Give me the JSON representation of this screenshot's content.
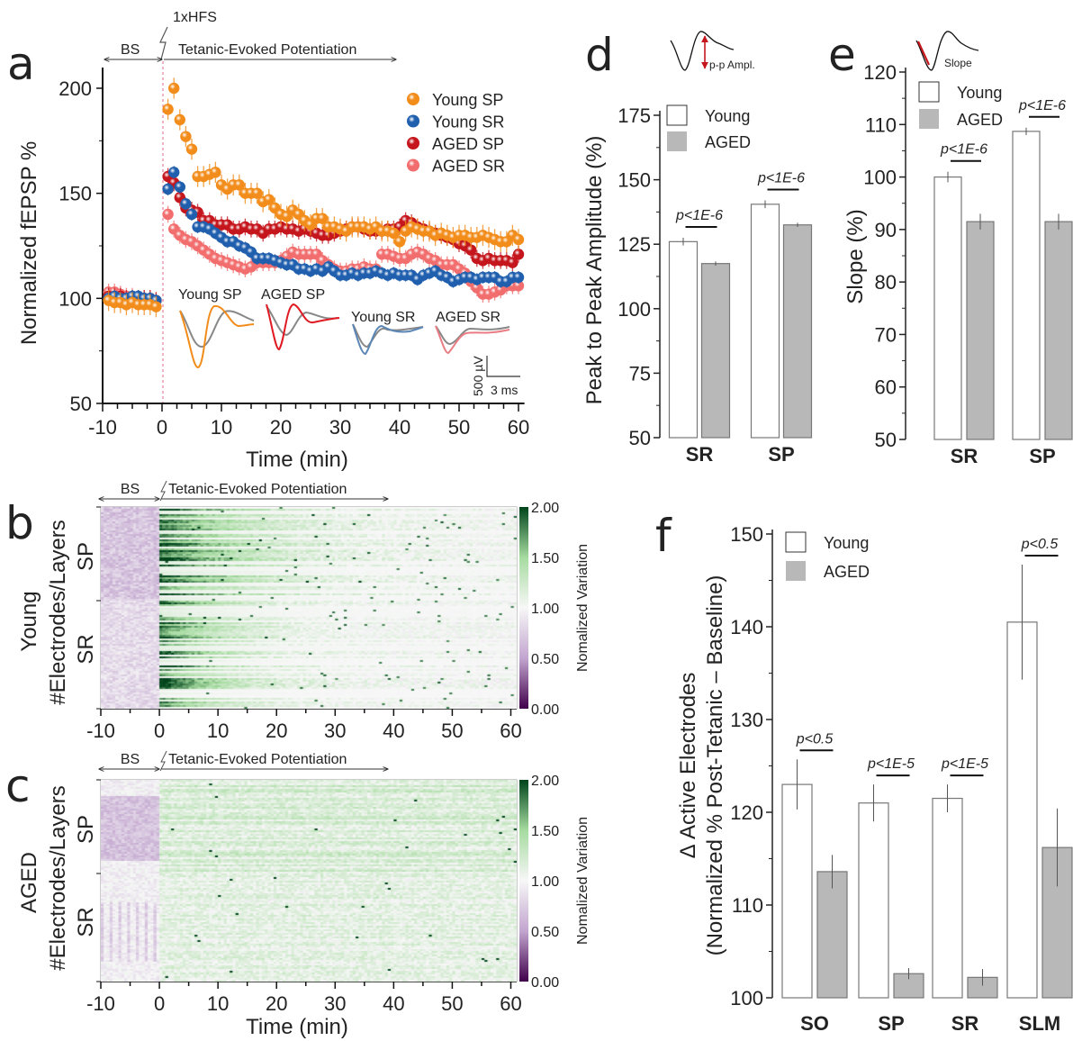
{
  "panel_labels": {
    "a": "a",
    "b": "b",
    "c": "c",
    "d": "d",
    "e": "e",
    "f": "f"
  },
  "chart_data": [
    {
      "id": "a",
      "type": "scatter",
      "title": "",
      "xlabel": "Time (min)",
      "ylabel": "Normalized fEPSP %",
      "xlim": [
        -10,
        61
      ],
      "ylim": [
        50,
        210
      ],
      "xticks": [
        -10,
        0,
        10,
        20,
        30,
        40,
        50,
        60
      ],
      "yticks": [
        50,
        100,
        150,
        200
      ],
      "grid": false,
      "legend_position": "top-right",
      "annotations": {
        "stimulus": "1xHFS",
        "baseline": "BS",
        "post": "Tetanic-Evoked Potentiation"
      },
      "insets": {
        "labels": [
          "Young SP",
          "AGED SP",
          "Young SR",
          "AGED SR"
        ],
        "scalebar_y": "500 µV",
        "scalebar_x": "3 ms"
      },
      "x": [
        -9,
        -8,
        -7,
        -6,
        -5,
        -4,
        -3,
        -2,
        -1,
        1,
        2,
        3,
        4,
        5,
        6,
        7,
        8,
        9,
        10,
        11,
        12,
        13,
        14,
        15,
        16,
        17,
        18,
        19,
        20,
        21,
        22,
        23,
        24,
        25,
        26,
        27,
        28,
        29,
        30,
        31,
        32,
        33,
        34,
        35,
        36,
        37,
        38,
        39,
        40,
        41,
        42,
        43,
        44,
        45,
        46,
        47,
        48,
        49,
        50,
        51,
        52,
        53,
        54,
        55,
        56,
        57,
        58,
        59,
        60
      ],
      "series": [
        {
          "name": "Young SP",
          "color": "#f28c1a",
          "error": 5,
          "values": [
            99,
            98,
            98,
            97,
            98,
            97,
            97,
            97,
            96,
            190,
            200,
            185,
            177,
            171,
            158,
            158,
            159,
            160,
            154,
            152,
            154,
            154,
            150,
            150,
            150,
            146,
            147,
            143,
            140,
            139,
            142,
            140,
            137,
            135,
            138,
            138,
            134,
            134,
            133,
            132,
            134,
            134,
            134,
            133,
            134,
            132,
            132,
            131,
            127,
            132,
            134,
            133,
            132,
            132,
            130,
            131,
            130,
            129,
            130,
            130,
            129,
            129,
            130,
            129,
            128,
            127,
            127,
            130,
            128
          ]
        },
        {
          "name": "Young SR",
          "color": "#1f5fae",
          "error": 3,
          "values": [
            100,
            101,
            100,
            100,
            101,
            101,
            100,
            100,
            99,
            152,
            160,
            153,
            145,
            140,
            134,
            134,
            133,
            131,
            129,
            127,
            127,
            125,
            124,
            122,
            119,
            119,
            119,
            118,
            117,
            116,
            116,
            114,
            114,
            113,
            114,
            113,
            115,
            113,
            111,
            111,
            112,
            111,
            112,
            112,
            113,
            112,
            111,
            112,
            111,
            111,
            111,
            109,
            111,
            112,
            113,
            111,
            110,
            108,
            109,
            110,
            110,
            109,
            110,
            110,
            110,
            108,
            108,
            110,
            110
          ]
        },
        {
          "name": "AGED SP",
          "color": "#c4161c",
          "error": 4,
          "values": [
            101,
            101,
            101,
            100,
            100,
            100,
            100,
            100,
            99,
            158,
            155,
            148,
            143,
            142,
            141,
            137,
            137,
            135,
            135,
            135,
            133,
            133,
            134,
            133,
            133,
            131,
            133,
            133,
            134,
            133,
            133,
            132,
            133,
            132,
            131,
            130,
            130,
            131,
            132,
            133,
            134,
            134,
            133,
            132,
            132,
            132,
            133,
            133,
            134,
            137,
            136,
            134,
            133,
            132,
            131,
            130,
            129,
            128,
            126,
            125,
            123,
            119,
            118,
            119,
            118,
            118,
            118,
            117,
            121
          ]
        },
        {
          "name": "AGED SR",
          "color": "#f26d6d",
          "error": 4,
          "values": [
            103,
            103,
            102,
            101,
            101,
            100,
            100,
            100,
            99,
            140,
            133,
            130,
            128,
            127,
            125,
            123,
            121,
            119,
            118,
            117,
            116,
            115,
            114,
            115,
            117,
            117,
            117,
            117,
            118,
            120,
            122,
            121,
            121,
            121,
            121,
            118,
            116,
            114,
            113,
            113,
            114,
            114,
            115,
            114,
            114,
            121,
            121,
            120,
            119,
            119,
            121,
            122,
            121,
            119,
            118,
            116,
            116,
            116,
            114,
            112,
            108,
            105,
            102,
            102,
            103,
            104,
            106,
            106,
            106
          ]
        }
      ]
    },
    {
      "id": "b",
      "type": "heatmap",
      "group_label": "Young",
      "ylabel": "#Electrodes/Layers",
      "row_groups": [
        "SP",
        "SR"
      ],
      "xlabel": "",
      "xlim": [
        -10,
        61
      ],
      "xticks": [
        -10,
        0,
        10,
        20,
        30,
        40,
        50,
        60
      ],
      "annotations": {
        "baseline": "BS",
        "post": "Tetanic-Evoked Potentiation"
      },
      "colorbar": {
        "label": "Nomalized Variation",
        "ticks": [
          "2.00",
          "1.50",
          "1.00",
          "0.50",
          "0.00"
        ],
        "range": [
          0,
          2
        ],
        "colors": [
          "#40004b",
          "#c2a5cf",
          "#f7f7f7",
          "#a6dba0",
          "#00441b"
        ]
      }
    },
    {
      "id": "c",
      "type": "heatmap",
      "group_label": "AGED",
      "ylabel": "#Electrodes/Layers",
      "row_groups": [
        "SP",
        "SR"
      ],
      "xlabel": "Time (min)",
      "xlim": [
        -10,
        61
      ],
      "xticks": [
        -10,
        0,
        10,
        20,
        30,
        40,
        50,
        60
      ],
      "annotations": {
        "baseline": "BS",
        "post": "Tetanic-Evoked Potentiation"
      },
      "colorbar": {
        "label": "Nomalized Variation",
        "ticks": [
          "2.00",
          "1.50",
          "1.00",
          "0.50",
          "0.00"
        ],
        "range": [
          0,
          2
        ],
        "colors": [
          "#40004b",
          "#c2a5cf",
          "#f7f7f7",
          "#a6dba0",
          "#00441b"
        ]
      }
    },
    {
      "id": "d",
      "type": "bar",
      "icon_label": "p-p Ampl.",
      "ylabel": "Peak to Peak Amplitude (%)",
      "ylim": [
        50,
        175
      ],
      "yticks": [
        50,
        75,
        100,
        125,
        150,
        175
      ],
      "categories": [
        "SR",
        "SP"
      ],
      "series": [
        {
          "name": "Young",
          "color": "#ffffff",
          "values": [
            126,
            140.5
          ],
          "errors": [
            1.5,
            1.5
          ]
        },
        {
          "name": "AGED",
          "color": "#b8b8b8",
          "values": [
            117.5,
            132.5
          ],
          "errors": [
            0.8,
            0.8
          ]
        }
      ],
      "significance": [
        "p<1E-6",
        "p<1E-6"
      ],
      "legend_position": "top-left"
    },
    {
      "id": "e",
      "type": "bar",
      "icon_label": "Slope",
      "ylabel": "Slope (%)",
      "ylim": [
        50,
        120
      ],
      "yticks": [
        50,
        60,
        70,
        80,
        90,
        100,
        110,
        120
      ],
      "categories": [
        "SR",
        "SP"
      ],
      "series": [
        {
          "name": "Young",
          "color": "#ffffff",
          "values": [
            100,
            108.7
          ],
          "errors": [
            1,
            0.7
          ]
        },
        {
          "name": "AGED",
          "color": "#b8b8b8",
          "values": [
            91.5,
            91.5
          ],
          "errors": [
            1.5,
            1.5
          ]
        }
      ],
      "significance": [
        "p<1E-6",
        "p<1E-6"
      ],
      "legend_position": "top-left"
    },
    {
      "id": "f",
      "type": "bar",
      "ylabel": "Δ Active Electrodes",
      "ylabel2": "(Normalized % Post-Tetanic – Baseline)",
      "ylim": [
        100,
        150
      ],
      "yticks": [
        100,
        110,
        120,
        130,
        140,
        150
      ],
      "categories": [
        "SO",
        "SP",
        "SR",
        "SLM"
      ],
      "series": [
        {
          "name": "Young",
          "color": "#ffffff",
          "values": [
            123,
            121,
            121.5,
            140.5
          ],
          "errors": [
            2.7,
            2,
            1.5,
            6.2
          ]
        },
        {
          "name": "AGED",
          "color": "#b8b8b8",
          "values": [
            113.6,
            102.6,
            102.2,
            116.2
          ],
          "errors": [
            1.8,
            0.6,
            0.9,
            4.2
          ]
        }
      ],
      "significance": [
        "p<0.5",
        "p<1E-5",
        "p<1E-5",
        "p<0.5"
      ],
      "legend_position": "top-left"
    }
  ]
}
